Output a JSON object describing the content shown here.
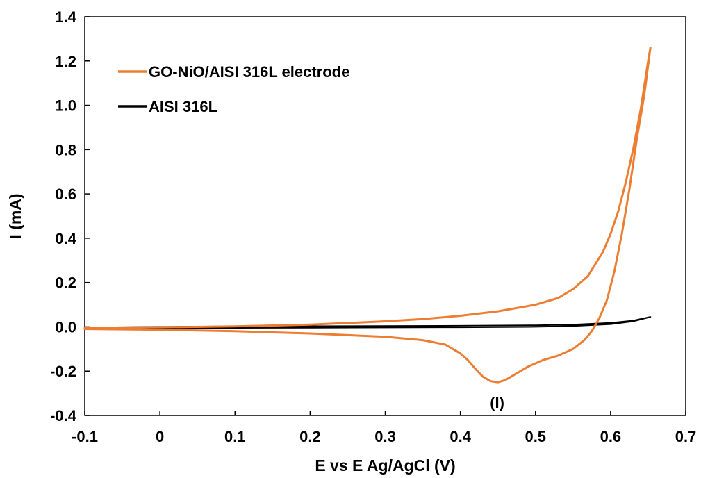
{
  "chart_data": {
    "type": "line",
    "xlabel": "E vs E Ag/AgCl (V)",
    "ylabel": "I (mA)",
    "xlim": [
      -0.1,
      0.7
    ],
    "ylim": [
      -0.4,
      1.4
    ],
    "x_ticks": [
      "-0.1",
      "0",
      "0.1",
      "0.2",
      "0.3",
      "0.4",
      "0.5",
      "0.6",
      "0.7"
    ],
    "y_ticks": [
      "-0.4",
      "-0.2",
      "0.0",
      "0.2",
      "0.4",
      "0.6",
      "0.8",
      "1.0",
      "1.2",
      "1.4"
    ],
    "grid": false,
    "legend_position": "top-left",
    "annotation": "(I)",
    "series": [
      {
        "name": "GO-NiO/AISI 316L electrode",
        "color": "#ED7D31",
        "anodic": [
          [
            -0.1,
            -0.005
          ],
          [
            0.0,
            -0.002
          ],
          [
            0.1,
            0.002
          ],
          [
            0.2,
            0.01
          ],
          [
            0.3,
            0.025
          ],
          [
            0.35,
            0.035
          ],
          [
            0.4,
            0.05
          ],
          [
            0.45,
            0.07
          ],
          [
            0.5,
            0.1
          ],
          [
            0.53,
            0.13
          ],
          [
            0.55,
            0.17
          ],
          [
            0.57,
            0.23
          ],
          [
            0.59,
            0.34
          ],
          [
            0.6,
            0.42
          ],
          [
            0.61,
            0.52
          ],
          [
            0.62,
            0.65
          ],
          [
            0.63,
            0.8
          ],
          [
            0.64,
            0.98
          ],
          [
            0.65,
            1.2
          ],
          [
            0.653,
            1.26
          ]
        ],
        "cathodic": [
          [
            0.653,
            1.26
          ],
          [
            0.645,
            1.05
          ],
          [
            0.635,
            0.85
          ],
          [
            0.625,
            0.62
          ],
          [
            0.615,
            0.42
          ],
          [
            0.605,
            0.25
          ],
          [
            0.595,
            0.12
          ],
          [
            0.585,
            0.04
          ],
          [
            0.575,
            -0.02
          ],
          [
            0.565,
            -0.06
          ],
          [
            0.55,
            -0.1
          ],
          [
            0.53,
            -0.13
          ],
          [
            0.51,
            -0.15
          ],
          [
            0.49,
            -0.18
          ],
          [
            0.47,
            -0.22
          ],
          [
            0.46,
            -0.24
          ],
          [
            0.45,
            -0.25
          ],
          [
            0.44,
            -0.245
          ],
          [
            0.43,
            -0.225
          ],
          [
            0.42,
            -0.19
          ],
          [
            0.41,
            -0.15
          ],
          [
            0.4,
            -0.12
          ],
          [
            0.38,
            -0.08
          ],
          [
            0.35,
            -0.06
          ],
          [
            0.3,
            -0.045
          ],
          [
            0.2,
            -0.03
          ],
          [
            0.1,
            -0.02
          ],
          [
            0.0,
            -0.013
          ],
          [
            -0.1,
            -0.01
          ]
        ]
      },
      {
        "name": "AISI 316L",
        "color": "#000000",
        "anodic": [
          [
            -0.1,
            -0.003
          ],
          [
            0.0,
            0.0
          ],
          [
            0.1,
            0.002
          ],
          [
            0.2,
            0.003
          ],
          [
            0.3,
            0.004
          ],
          [
            0.4,
            0.005
          ],
          [
            0.5,
            0.007
          ],
          [
            0.55,
            0.01
          ],
          [
            0.6,
            0.018
          ],
          [
            0.63,
            0.028
          ],
          [
            0.653,
            0.045
          ]
        ],
        "cathodic": [
          [
            0.653,
            0.045
          ],
          [
            0.63,
            0.025
          ],
          [
            0.6,
            0.012
          ],
          [
            0.55,
            0.004
          ],
          [
            0.5,
            0.0
          ],
          [
            0.4,
            -0.002
          ],
          [
            0.3,
            -0.003
          ],
          [
            0.2,
            -0.004
          ],
          [
            0.1,
            -0.005
          ],
          [
            0.0,
            -0.005
          ],
          [
            -0.1,
            -0.006
          ]
        ]
      }
    ]
  }
}
